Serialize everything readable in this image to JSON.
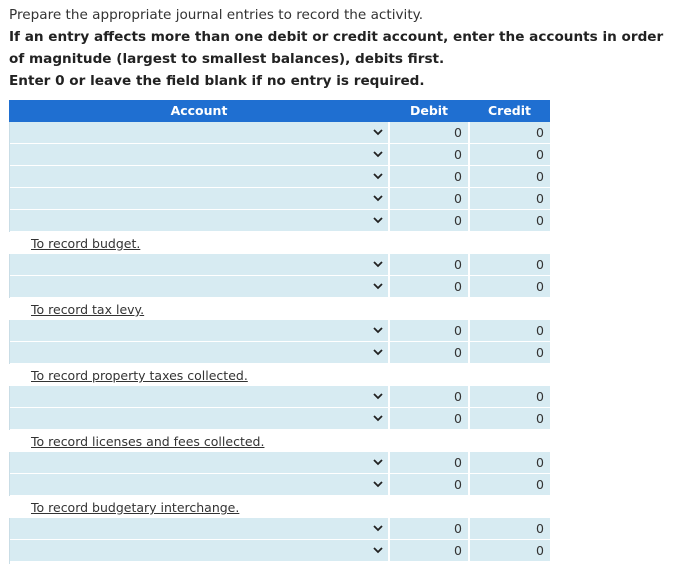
{
  "instructions": {
    "line1": "Prepare the appropriate journal entries to record the activity.",
    "line2": "If an entry affects more than one debit or credit account, enter the accounts in order of magnitude (largest to smallest balances), debits first.",
    "line3": "Enter 0 or leave the field blank if no entry is required."
  },
  "table": {
    "headers": {
      "account": "Account",
      "debit": "Debit",
      "credit": "Credit"
    },
    "groups": [
      {
        "rows": [
          {
            "debit": "0",
            "credit": "0"
          },
          {
            "debit": "0",
            "credit": "0"
          },
          {
            "debit": "0",
            "credit": "0"
          },
          {
            "debit": "0",
            "credit": "0"
          },
          {
            "debit": "0",
            "credit": "0"
          }
        ],
        "memo": "To record budget."
      },
      {
        "rows": [
          {
            "debit": "0",
            "credit": "0"
          },
          {
            "debit": "0",
            "credit": "0"
          }
        ],
        "memo": "To record tax levy."
      },
      {
        "rows": [
          {
            "debit": "0",
            "credit": "0"
          },
          {
            "debit": "0",
            "credit": "0"
          }
        ],
        "memo": "To record property taxes collected."
      },
      {
        "rows": [
          {
            "debit": "0",
            "credit": "0"
          },
          {
            "debit": "0",
            "credit": "0"
          }
        ],
        "memo": "To record licenses and fees collected."
      },
      {
        "rows": [
          {
            "debit": "0",
            "credit": "0"
          },
          {
            "debit": "0",
            "credit": "0"
          }
        ],
        "memo": "To record budgetary interchange."
      },
      {
        "rows": [
          {
            "debit": "0",
            "credit": "0"
          },
          {
            "debit": "0",
            "credit": "0"
          }
        ]
      }
    ]
  },
  "colors": {
    "header_bg": "#1f6fd1",
    "cell_bg": "#d7ebf2"
  }
}
